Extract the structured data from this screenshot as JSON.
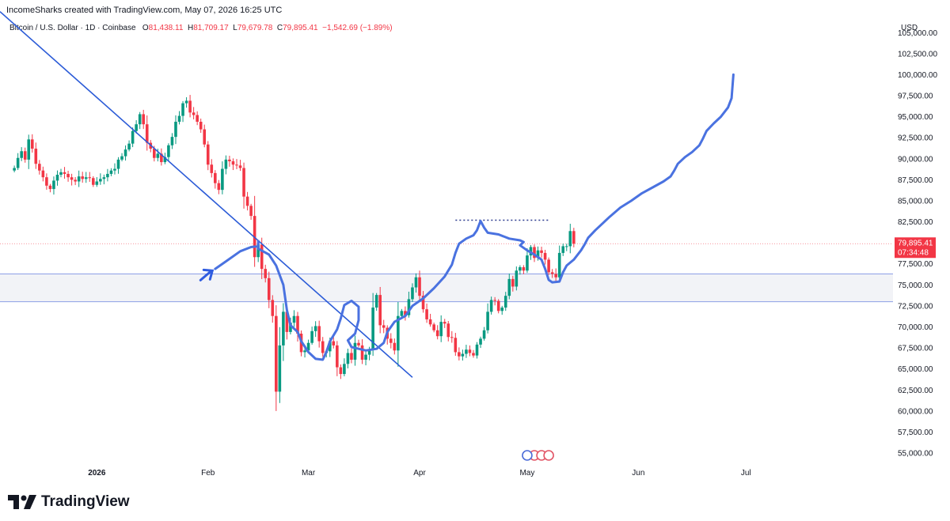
{
  "header": {
    "attribution": "IncomeSharks created with TradingView.com, May 07, 2026 16:25 UTC"
  },
  "legend": {
    "symbol": "Bitcoin / U.S. Dollar · 1D · Coinbase",
    "open_label": "O",
    "open": "81,438.11",
    "high_label": "H",
    "high": "81,709.17",
    "low_label": "L",
    "low": "79,679.78",
    "close_label": "C",
    "close": "79,895.41",
    "change": "−1,542.69 (−1.89%)"
  },
  "footer": {
    "brand": "TradingView"
  },
  "colors": {
    "up": "#089981",
    "down": "#f23645",
    "drawing": "#4a72e0",
    "trendline": "#2b5bd7",
    "zone": "#8c9fe6"
  },
  "chart_data": {
    "type": "candlestick",
    "currency": "USD",
    "ylim": [
      53500,
      107000
    ],
    "y_ticks": [
      55000,
      57500,
      60000,
      62500,
      65000,
      67500,
      70000,
      72500,
      75000,
      77500,
      80000,
      82500,
      85000,
      87500,
      90000,
      92500,
      95000,
      97500,
      100000,
      102500,
      105000
    ],
    "y_tick_labels": [
      "55,000.00",
      "57,500.00",
      "60,000.00",
      "62,500.00",
      "65,000.00",
      "67,500.00",
      "70,000.00",
      "72,500.00",
      "75,000.00",
      "77,500.00",
      "80,000.00",
      "82,500.00",
      "85,000.00",
      "87,500.00",
      "90,000.00",
      "92,500.00",
      "95,000.00",
      "97,500.00",
      "100,000.00",
      "102,500.00",
      "105,000.00"
    ],
    "x_ticks": [
      {
        "label": "2026",
        "day": 0
      },
      {
        "label": "Feb",
        "day": 31
      },
      {
        "label": "Mar",
        "day": 59
      },
      {
        "label": "Apr",
        "day": 90
      },
      {
        "label": "May",
        "day": 120
      },
      {
        "label": "Jun",
        "day": 151
      },
      {
        "label": "Jul",
        "day": 181
      }
    ],
    "x_range_days": [
      -27,
      222
    ],
    "last_price": {
      "value": 79895.41,
      "label": "79,895.41",
      "countdown": "07:34:48"
    },
    "support_zone": [
      73000,
      76300
    ],
    "resistance_level": 82700,
    "closes": [
      88900,
      90100,
      90900,
      89900,
      92300,
      91200,
      89400,
      88600,
      87800,
      86800,
      86400,
      87400,
      88100,
      88400,
      88200,
      87800,
      87500,
      87300,
      87900,
      87600,
      87800,
      87700,
      86900,
      87300,
      87600,
      87800,
      88200,
      88600,
      88800,
      89900,
      90300,
      91100,
      91800,
      93300,
      94100,
      95300,
      94100,
      91900,
      91200,
      90100,
      90600,
      89600,
      90200,
      91600,
      92600,
      94400,
      95100,
      96600,
      96900,
      95500,
      95200,
      94400,
      93500,
      91700,
      89300,
      88300,
      87100,
      86300,
      88800,
      89900,
      89700,
      89300,
      89200,
      88900,
      85500,
      84400,
      83200,
      78300,
      79800,
      76900,
      75800,
      73200,
      71300,
      62300,
      67800,
      71800,
      69400,
      70500,
      71300,
      69200,
      67000,
      67200,
      68100,
      69500,
      70100,
      68300,
      66900,
      67100,
      68300,
      67800,
      65200,
      64400,
      65600,
      66900,
      66100,
      68100,
      67800,
      66100,
      66700,
      67300,
      72300,
      73800,
      70200,
      69900,
      68600,
      68100,
      67200,
      71300,
      71900,
      71400,
      73300,
      74700,
      75900,
      73700,
      72100,
      70900,
      70300,
      69600,
      68900,
      70600,
      70400,
      68800,
      68700,
      67000,
      66500,
      66800,
      67300,
      66900,
      66600,
      67900,
      68600,
      69600,
      71800,
      73200,
      73100,
      71900,
      72300,
      73700,
      75700,
      74800,
      76700,
      77100,
      76700,
      78500,
      79500,
      78200,
      79100,
      78800,
      78000,
      76500,
      76300,
      75900,
      78800,
      79600,
      79600,
      81400,
      79900
    ]
  }
}
